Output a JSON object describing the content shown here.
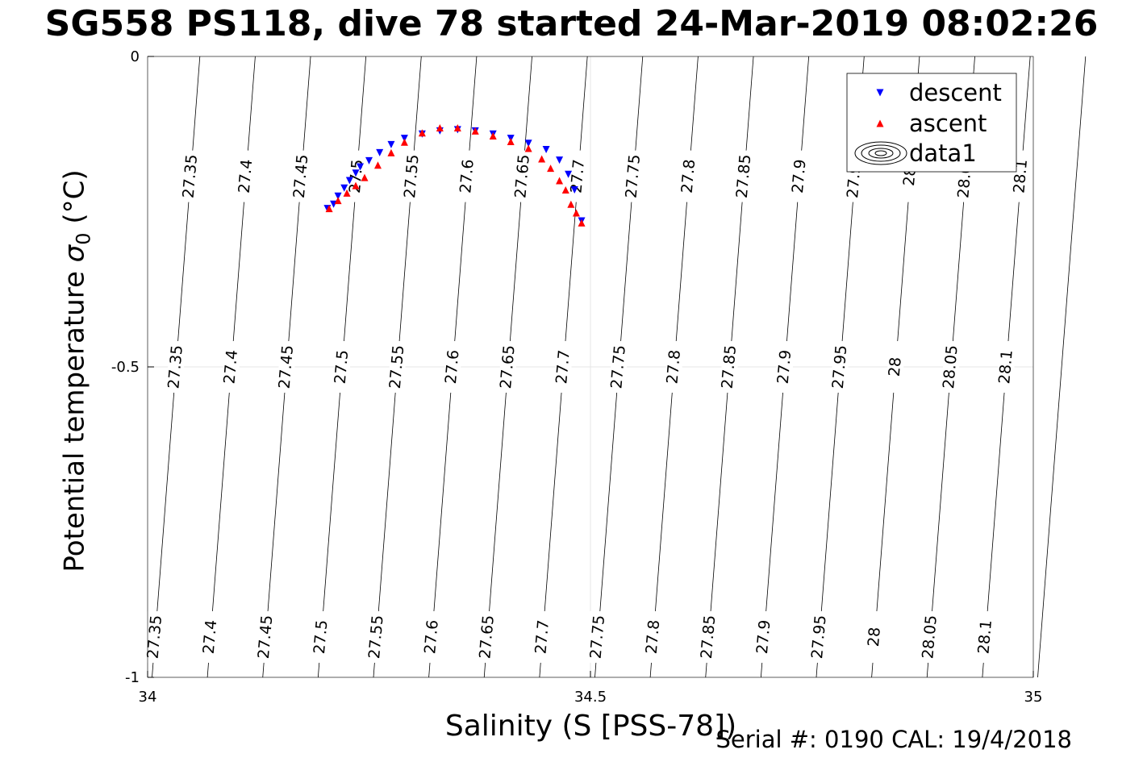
{
  "title": "SG558 PS118, dive 78 started 24-Mar-2019 08:02:26",
  "footer": {
    "serial": "Serial #: 0190  CAL: 19/4/2018"
  },
  "chart_data": {
    "type": "scatter",
    "title": "SG558 PS118, dive 78 started 24-Mar-2019 08:02:26",
    "xlabel": "Salinity (S [PSS-78])",
    "ylabel": "Potential temperature σ₀ (°C)",
    "ylabel_parts": {
      "text": "Potential temperature ",
      "sym": "σ",
      "sub": "0",
      "unit": " (°C)"
    },
    "xlim": [
      34,
      35
    ],
    "ylim": [
      -1,
      0
    ],
    "xticks": [
      "34",
      "34.5",
      "35"
    ],
    "yticks": [
      "0",
      "-0.5",
      "-1"
    ],
    "grid": true,
    "legend": {
      "position": "top-right",
      "entries": [
        "descent",
        "ascent",
        "data1"
      ]
    },
    "isopycnal_labels": [
      "27.35",
      "27.4",
      "27.45",
      "27.5",
      "27.55",
      "27.6",
      "27.65",
      "27.7",
      "27.75",
      "27.8",
      "27.85",
      "27.9",
      "27.95",
      "28",
      "28.05",
      "28.1"
    ],
    "series": [
      {
        "name": "descent",
        "marker": "triangle-down",
        "color": "#0000ff",
        "x": [
          34.203,
          34.21,
          34.215,
          34.222,
          34.228,
          34.235,
          34.24,
          34.25,
          34.262,
          34.275,
          34.29,
          34.31,
          34.33,
          34.35,
          34.37,
          34.39,
          34.41,
          34.43,
          34.45,
          34.465,
          34.475,
          34.482,
          34.49
        ],
        "y": [
          -0.245,
          -0.238,
          -0.225,
          -0.212,
          -0.2,
          -0.188,
          -0.178,
          -0.168,
          -0.155,
          -0.142,
          -0.132,
          -0.125,
          -0.12,
          -0.118,
          -0.12,
          -0.125,
          -0.132,
          -0.14,
          -0.15,
          -0.167,
          -0.19,
          -0.215,
          -0.265
        ]
      },
      {
        "name": "ascent",
        "marker": "triangle-up",
        "color": "#ff0000",
        "x": [
          34.205,
          34.215,
          34.225,
          34.235,
          34.245,
          34.26,
          34.275,
          34.29,
          34.31,
          34.33,
          34.35,
          34.37,
          34.39,
          34.41,
          34.43,
          34.445,
          34.455,
          34.465,
          34.472,
          34.478,
          34.484,
          34.49
        ],
        "y": [
          -0.245,
          -0.232,
          -0.22,
          -0.208,
          -0.195,
          -0.175,
          -0.155,
          -0.138,
          -0.123,
          -0.115,
          -0.115,
          -0.12,
          -0.128,
          -0.137,
          -0.148,
          -0.165,
          -0.18,
          -0.2,
          -0.215,
          -0.238,
          -0.252,
          -0.268
        ]
      }
    ]
  }
}
